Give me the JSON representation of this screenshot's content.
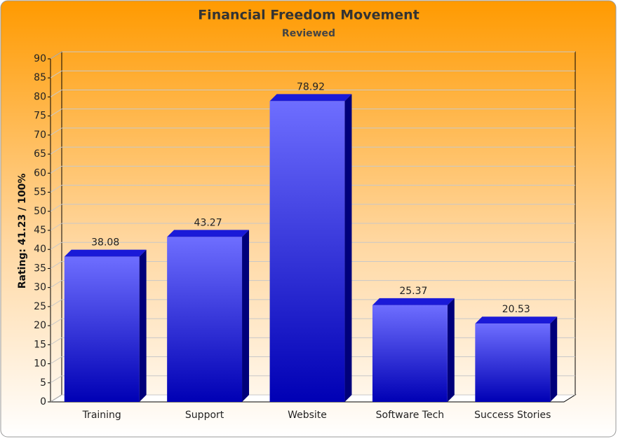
{
  "chart_data": {
    "type": "bar",
    "title": "Financial Freedom Movement",
    "subtitle": "Reviewed",
    "y_label": "Rating: 41.23 / 100%",
    "categories": [
      "Training",
      "Support",
      "Website",
      "Software Tech",
      "Success Stories"
    ],
    "values": [
      38.08,
      43.27,
      78.92,
      25.37,
      20.53
    ],
    "color": "#1a1ad8",
    "ylim": [
      0,
      90
    ],
    "yticks": [
      0,
      5,
      10,
      15,
      20,
      25,
      30,
      35,
      40,
      45,
      50,
      55,
      60,
      65,
      70,
      75,
      80,
      85,
      90
    ],
    "grid": true
  }
}
